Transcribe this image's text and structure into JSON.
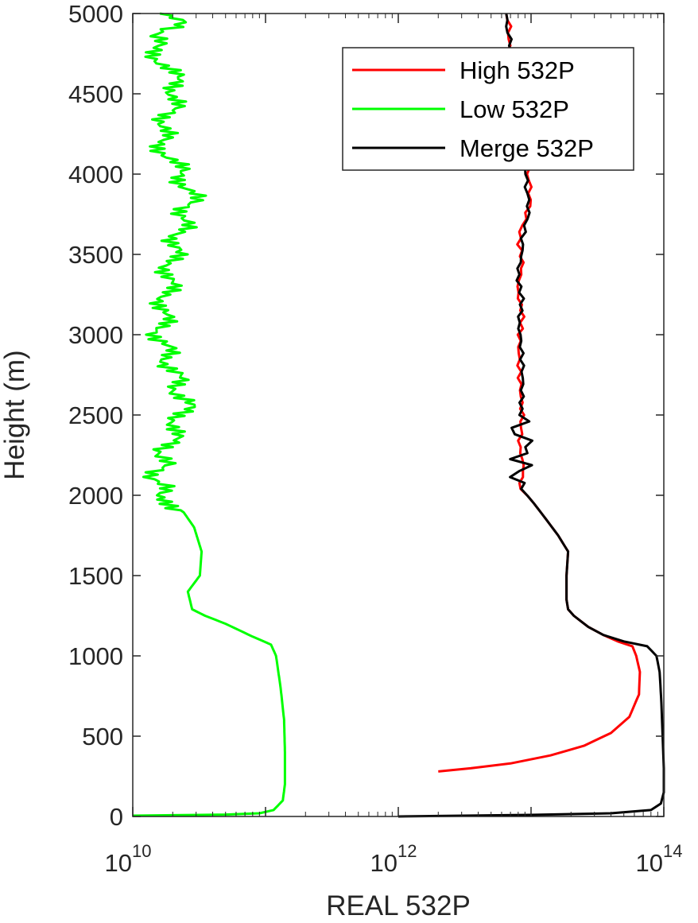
{
  "chart_data": {
    "type": "line",
    "xlabel": "REAL 532P",
    "ylabel": "Height (m)",
    "xscale": "log",
    "xlim": [
      10000000000.0,
      100000000000000.0
    ],
    "ylim": [
      0,
      5000
    ],
    "x_ticks": [
      {
        "value": 10000000000.0,
        "base": "10",
        "exp": "10"
      },
      {
        "value": 1000000000000.0,
        "base": "10",
        "exp": "12"
      },
      {
        "value": 100000000000000.0,
        "base": "10",
        "exp": "14"
      }
    ],
    "y_ticks": [
      0,
      500,
      1000,
      1500,
      2000,
      2500,
      3000,
      3500,
      4000,
      4500,
      5000
    ],
    "y_tick_labels": [
      "0",
      "500",
      "1000",
      "1500",
      "2000",
      "2500",
      "3000",
      "3500",
      "4000",
      "4500",
      "5000"
    ],
    "grid": false,
    "box": true,
    "legend_position": "top-right",
    "series": [
      {
        "name": "High 532P",
        "color": "#ff0000",
        "points": [
          [
            2000000000000.0,
            280
          ],
          [
            3500000000000.0,
            300
          ],
          [
            7000000000000.0,
            330
          ],
          [
            14000000000000.0,
            380
          ],
          [
            25000000000000.0,
            440
          ],
          [
            40000000000000.0,
            520
          ],
          [
            55000000000000.0,
            620
          ],
          [
            65000000000000.0,
            760
          ],
          [
            66000000000000.0,
            900
          ],
          [
            62000000000000.0,
            1000
          ],
          [
            58000000000000.0,
            1060
          ],
          [
            45000000000000.0,
            1090
          ],
          [
            35000000000000.0,
            1130
          ],
          [
            27000000000000.0,
            1180
          ],
          [
            21000000000000.0,
            1250
          ],
          [
            19000000000000.0,
            1290
          ],
          [
            18500000000000.0,
            1350
          ],
          [
            18500000000000.0,
            1500
          ],
          [
            19000000000000.0,
            1650
          ],
          [
            16000000000000.0,
            1750
          ],
          [
            13000000000000.0,
            1850
          ],
          [
            10500000000000.0,
            1950
          ],
          [
            8500000000000.0,
            2040
          ],
          [
            8500000000000.0,
            2150
          ],
          [
            8500000000000.0,
            2300
          ],
          [
            8300000000000.0,
            2500
          ],
          [
            8400000000000.0,
            3000
          ],
          [
            8200000000000.0,
            3300
          ],
          [
            8400000000000.0,
            3600
          ],
          [
            9500000000000.0,
            3800
          ],
          [
            9500000000000.0,
            4000
          ],
          [
            8500000000000.0,
            4150
          ],
          [
            7500000000000.0,
            4400
          ],
          [
            7000000000000.0,
            4600
          ],
          [
            6800000000000.0,
            4800
          ],
          [
            6500000000000.0,
            5000
          ]
        ]
      },
      {
        "name": "Low 532P",
        "color": "#00ff00",
        "points": [
          [
            10000000000.0,
            5
          ],
          [
            20000000000.0,
            8
          ],
          [
            50000000000.0,
            12
          ],
          [
            90000000000.0,
            20
          ],
          [
            115000000000.0,
            40
          ],
          [
            135000000000.0,
            100
          ],
          [
            140000000000.0,
            200
          ],
          [
            140000000000.0,
            400
          ],
          [
            138000000000.0,
            600
          ],
          [
            130000000000.0,
            800
          ],
          [
            120000000000.0,
            1000
          ],
          [
            110000000000.0,
            1070
          ],
          [
            80000000000.0,
            1120
          ],
          [
            50000000000.0,
            1200
          ],
          [
            35000000000.0,
            1250
          ],
          [
            28000000000.0,
            1290
          ],
          [
            26000000000.0,
            1400
          ],
          [
            32000000000.0,
            1500
          ],
          [
            33000000000.0,
            1650
          ],
          [
            29000000000.0,
            1800
          ],
          [
            23000000000.0,
            1920
          ],
          [
            17000000000.0,
            2000
          ],
          [
            15000000000.0,
            2100
          ],
          [
            18000000000.0,
            2300
          ],
          [
            25000000000.0,
            2550
          ],
          [
            16000000000.0,
            3000
          ],
          [
            20000000000.0,
            3500
          ],
          [
            28000000000.0,
            3880
          ],
          [
            16000000000.0,
            4200
          ],
          [
            22000000000.0,
            4550
          ],
          [
            14000000000.0,
            4800
          ],
          [
            22000000000.0,
            4960
          ],
          [
            16000000000.0,
            5000
          ]
        ]
      },
      {
        "name": "Merge 532P",
        "color": "#000000",
        "points": [
          [
            1000000000000.0,
            0
          ],
          [
            10000000000000.0,
            10
          ],
          [
            40000000000000.0,
            20
          ],
          [
            80000000000000.0,
            40
          ],
          [
            95000000000000.0,
            80
          ],
          [
            100000000000000.0,
            150
          ],
          [
            100000000000000.0,
            300
          ],
          [
            98000000000000.0,
            500
          ],
          [
            96000000000000.0,
            700
          ],
          [
            93000000000000.0,
            900
          ],
          [
            88000000000000.0,
            1000
          ],
          [
            75000000000000.0,
            1060
          ],
          [
            50000000000000.0,
            1090
          ],
          [
            35000000000000.0,
            1130
          ],
          [
            27000000000000.0,
            1180
          ],
          [
            21000000000000.0,
            1250
          ],
          [
            19000000000000.0,
            1290
          ],
          [
            18500000000000.0,
            1350
          ],
          [
            18500000000000.0,
            1500
          ],
          [
            19000000000000.0,
            1650
          ],
          [
            16000000000000.0,
            1750
          ],
          [
            13000000000000.0,
            1850
          ],
          [
            10500000000000.0,
            1950
          ],
          [
            8500000000000.0,
            2040
          ],
          [
            8500000000000.0,
            2150
          ],
          [
            8500000000000.0,
            2300
          ],
          [
            8300000000000.0,
            2500
          ],
          [
            8400000000000.0,
            3000
          ],
          [
            8200000000000.0,
            3300
          ],
          [
            8400000000000.0,
            3600
          ],
          [
            9500000000000.0,
            3800
          ],
          [
            9500000000000.0,
            4000
          ],
          [
            8500000000000.0,
            4150
          ],
          [
            7500000000000.0,
            4400
          ],
          [
            7000000000000.0,
            4600
          ],
          [
            6800000000000.0,
            4800
          ],
          [
            6500000000000.0,
            5000
          ]
        ]
      }
    ]
  }
}
